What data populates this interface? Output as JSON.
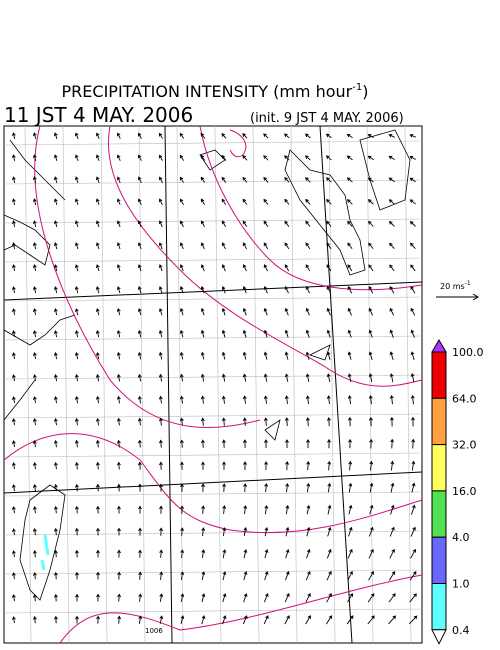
{
  "header": {
    "title": {
      "text": "PRECIPITATION INTENSITY (mm hour",
      "sup": "-1",
      "close": ")"
    },
    "valid_time": "11 JST 4 MAY. 2006",
    "init_time": "(init. 9 JST 4 MAY. 2006)"
  },
  "vector_scale": {
    "text": "20 ms",
    "sup": "-1"
  },
  "colorbar": [
    {
      "label": "100.0",
      "color": "#ee0000"
    },
    {
      "label": "64.0",
      "color": "#ffa040"
    },
    {
      "label": "32.0",
      "color": "#ffff60"
    },
    {
      "label": "16.0",
      "color": "#50e050"
    },
    {
      "label": "4.0",
      "color": "#6868ff"
    },
    {
      "label": "1.0",
      "color": "#60ffff"
    },
    {
      "label": "0.4",
      "color": "#ffffff"
    }
  ],
  "colorbar_over_color": "#b030ff",
  "map": {
    "contour_label": "1006"
  }
}
